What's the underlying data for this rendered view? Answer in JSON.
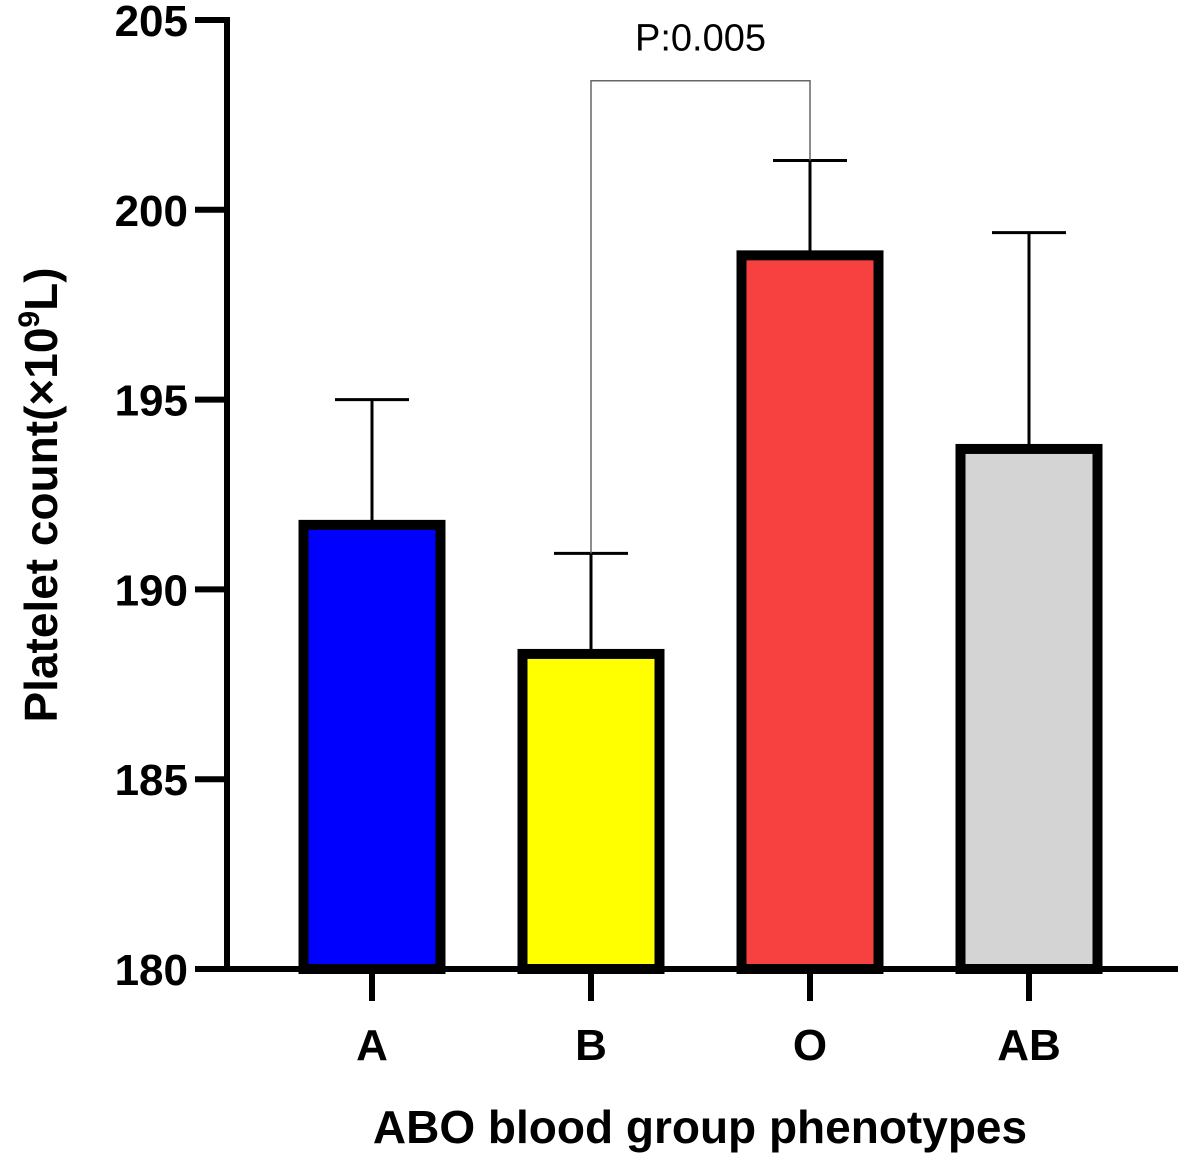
{
  "chart_data": {
    "type": "bar",
    "title": "",
    "xlabel": "ABO blood group phenotypes",
    "ylabel": {
      "prefix": "Platelet count(×10",
      "superscript": "9",
      "suffix": "L)"
    },
    "categories": [
      "A",
      "B",
      "O",
      "AB"
    ],
    "values": [
      191.7,
      188.3,
      198.8,
      193.7
    ],
    "error_upper": [
      195.0,
      190.95,
      201.3,
      199.4
    ],
    "colors": [
      "#0000ff",
      "#ffff00",
      "#f74040",
      "#d4d4d4"
    ],
    "ylim": [
      180,
      205
    ],
    "yticks": [
      180,
      185,
      190,
      195,
      200,
      205
    ],
    "ytick_labels": [
      "180",
      "185",
      "190",
      "195",
      "200",
      "205"
    ],
    "grid": false,
    "annotation": {
      "text": "P:0.005",
      "from_category": "B",
      "to_category": "O",
      "bracket_level": 203.4
    }
  }
}
